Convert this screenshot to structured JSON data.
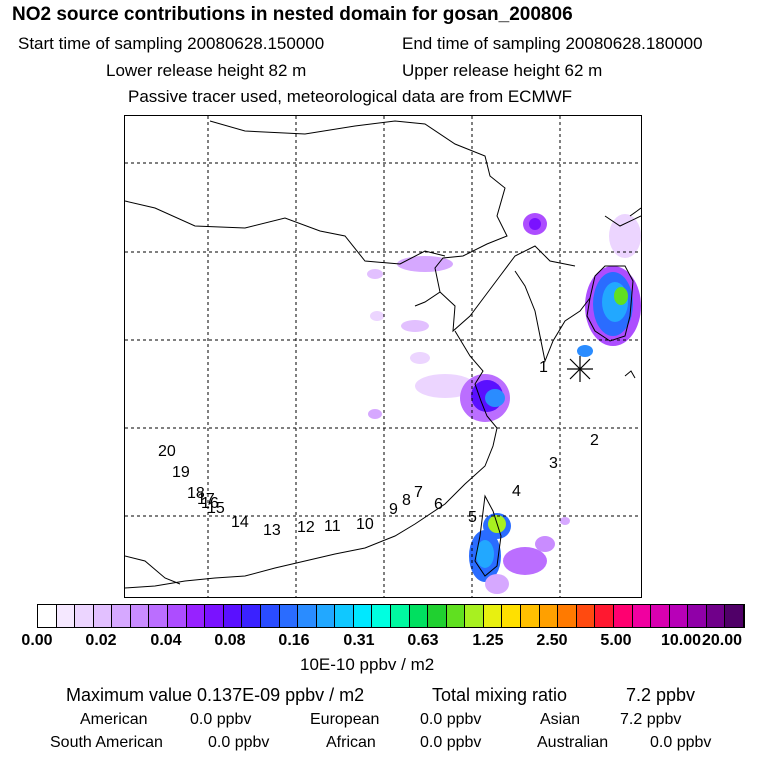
{
  "title": "NO2 source contributions in nested domain for gosan_200806",
  "start_label": "Start time of sampling 20080628.150000",
  "end_label": "End time of sampling 20080628.180000",
  "lower_label": "Lower release height   82 m",
  "upper_label": "Upper release height   62 m",
  "tracer_note": "Passive tracer used, meteorological data are from ECMWF",
  "colorbar": {
    "colors": [
      "#ffffff",
      "#f5e8ff",
      "#ecd5ff",
      "#e2c0ff",
      "#d6a8ff",
      "#c98cff",
      "#bb6eff",
      "#ad4dff",
      "#9722ff",
      "#7a12ff",
      "#5a10ff",
      "#3a22ff",
      "#2a4cff",
      "#2a6cff",
      "#2a8cff",
      "#22a8ff",
      "#10c8ff",
      "#00e8ff",
      "#00ffe0",
      "#00f8a0",
      "#00e060",
      "#20d030",
      "#60e020",
      "#a8f020",
      "#e8f010",
      "#ffe000",
      "#ffc000",
      "#ffa000",
      "#ff7a00",
      "#ff4a10",
      "#ff1830",
      "#ff0070",
      "#f000a0",
      "#d800b0",
      "#b800b8",
      "#9000a8",
      "#70008a",
      "#500068"
    ],
    "ticks": [
      "0.00",
      "0.02",
      "0.04",
      "0.08",
      "0.16",
      "0.31",
      "0.63",
      "1.25",
      "2.50",
      "5.00",
      "10.00",
      "20.00"
    ],
    "unit": "10E-10 ppbv / m2"
  },
  "stats": {
    "max_label": "Maximum value  0.137E-09 ppbv / m2",
    "total_label": "Total mixing ratio",
    "total_value": "7.2 ppbv",
    "american_label": "American",
    "american_value": "0.0 ppbv",
    "european_label": "European",
    "european_value": "0.0 ppbv",
    "asian_label": "Asian",
    "asian_value": "7.2 ppbv",
    "south_american_label": "South American",
    "south_american_value": "0.0 ppbv",
    "african_label": "African",
    "african_value": "0.0 ppbv",
    "australian_label": "Australian",
    "australian_value": "0.0 ppbv"
  },
  "site_labels": [
    "1",
    "2",
    "3",
    "4",
    "5",
    "6",
    "7",
    "8",
    "9",
    "10",
    "11",
    "12",
    "13",
    "14",
    "15",
    "16",
    "17",
    "18",
    "19",
    "20"
  ]
}
